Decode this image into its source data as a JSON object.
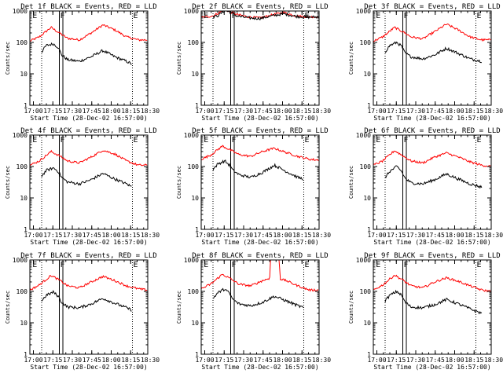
{
  "chart_data": [
    {
      "type": "line",
      "title": "Det 1f BLACK = Events, RED = LLD",
      "xlabel": "Start Time (28-Dec-02 16:57:00)",
      "ylabel": "Counts/sec",
      "yscale": "log",
      "ylim": [
        1,
        1000
      ],
      "yticks": [
        "1",
        "10",
        "100",
        "1000"
      ],
      "xlim": [
        0,
        100
      ],
      "xticks": [
        "17:00",
        "17:15",
        "17:30",
        "17:45",
        "18:00",
        "18:15",
        "18:30"
      ],
      "xtick_values": [
        3,
        19.5,
        36,
        52.5,
        69,
        85.5,
        102
      ],
      "markers": [
        {
          "label": "E",
          "x": 1.5
        },
        {
          "label": "F",
          "x": 25
        },
        {
          "label": "E",
          "x": 87
        }
      ],
      "dotted_lines": [
        10,
        25,
        87
      ],
      "solid_lines": [
        25,
        28
      ],
      "series": [
        {
          "name": "LLD",
          "color": "#ff0000",
          "x": [
            0,
            8,
            18,
            25,
            32,
            42,
            52,
            62,
            72,
            82,
            92,
            100
          ],
          "values": [
            110,
            150,
            300,
            200,
            135,
            120,
            200,
            360,
            250,
            150,
            120,
            120
          ]
        },
        {
          "name": "Events",
          "color": "#000000",
          "x": [
            10,
            14,
            20,
            24,
            27,
            32,
            42,
            52,
            62,
            72,
            82,
            87
          ],
          "values": [
            50,
            80,
            90,
            70,
            40,
            28,
            25,
            35,
            55,
            35,
            25,
            20
          ]
        }
      ]
    },
    {
      "type": "line",
      "title": "Det 2f BLACK = Events, RED = LLD",
      "xlabel": "Start Time (28-Dec-02 16:57:00)",
      "ylabel": "Counts/sec",
      "yscale": "log",
      "ylim": [
        1,
        1000
      ],
      "yticks": [
        "1",
        "10",
        "100",
        "1000"
      ],
      "xlim": [
        0,
        100
      ],
      "xticks": [
        "17:00",
        "17:15",
        "17:30",
        "17:45",
        "18:00",
        "18:15",
        "18:30"
      ],
      "xtick_values": [
        3,
        19.5,
        36,
        52.5,
        69,
        85.5,
        102
      ],
      "markers": [
        {
          "label": "E",
          "x": 1.5
        },
        {
          "label": "F",
          "x": 25
        },
        {
          "label": "E",
          "x": 87
        }
      ],
      "dotted_lines": [
        10,
        25,
        87
      ],
      "solid_lines": [
        25,
        28
      ],
      "series": [
        {
          "name": "LLD",
          "color": "#ff0000",
          "x": [
            0,
            10,
            20,
            30,
            40,
            50,
            60,
            70,
            80,
            90,
            100
          ],
          "values": [
            620,
            700,
            1100,
            780,
            650,
            600,
            750,
            900,
            700,
            650,
            650
          ]
        },
        {
          "name": "Events",
          "color": "#000000",
          "x": [
            10,
            14,
            20,
            25,
            30,
            40,
            50,
            60,
            70,
            80,
            90,
            100
          ],
          "values": [
            650,
            700,
            1050,
            900,
            700,
            600,
            580,
            700,
            820,
            680,
            640,
            640
          ]
        }
      ]
    },
    {
      "type": "line",
      "title": "Det 3f BLACK = Events, RED = LLD",
      "xlabel": "Start Time (28-Dec-02 16:57:00)",
      "ylabel": "Counts/sec",
      "yscale": "log",
      "ylim": [
        1,
        1000
      ],
      "yticks": [
        "1",
        "10",
        "100",
        "1000"
      ],
      "xlim": [
        0,
        100
      ],
      "xticks": [
        "17:00",
        "17:15",
        "17:30",
        "17:45",
        "18:00",
        "18:15",
        "18:30"
      ],
      "xtick_values": [
        3,
        19.5,
        36,
        52.5,
        69,
        85.5,
        102
      ],
      "markers": [
        {
          "label": "E",
          "x": 1.5
        },
        {
          "label": "F",
          "x": 25
        },
        {
          "label": "E",
          "x": 87
        }
      ],
      "dotted_lines": [
        10,
        25,
        87
      ],
      "solid_lines": [
        25,
        28
      ],
      "series": [
        {
          "name": "LLD",
          "color": "#ff0000",
          "x": [
            0,
            8,
            18,
            25,
            32,
            42,
            52,
            62,
            72,
            82,
            92,
            100
          ],
          "values": [
            110,
            150,
            300,
            220,
            150,
            130,
            220,
            380,
            250,
            150,
            120,
            120
          ]
        },
        {
          "name": "Events",
          "color": "#000000",
          "x": [
            10,
            14,
            20,
            24,
            27,
            32,
            42,
            52,
            62,
            72,
            82,
            92
          ],
          "values": [
            50,
            80,
            100,
            75,
            45,
            35,
            30,
            40,
            65,
            45,
            30,
            25
          ]
        }
      ]
    },
    {
      "type": "line",
      "title": "Det 4f BLACK = Events, RED = LLD",
      "xlabel": "Start Time (28-Dec-02 16:57:00)",
      "ylabel": "Counts/sec",
      "yscale": "log",
      "ylim": [
        1,
        1000
      ],
      "yticks": [
        "1",
        "10",
        "100",
        "1000"
      ],
      "xlim": [
        0,
        100
      ],
      "xticks": [
        "17:00",
        "17:15",
        "17:30",
        "17:45",
        "18:00",
        "18:15",
        "18:30"
      ],
      "xtick_values": [
        3,
        19.5,
        36,
        52.5,
        69,
        85.5,
        102
      ],
      "markers": [
        {
          "label": "E",
          "x": 1.5
        },
        {
          "label": "F",
          "x": 25
        },
        {
          "label": "E",
          "x": 87
        }
      ],
      "dotted_lines": [
        10,
        25,
        87
      ],
      "solid_lines": [
        25,
        28
      ],
      "series": [
        {
          "name": "LLD",
          "color": "#ff0000",
          "x": [
            0,
            8,
            18,
            25,
            32,
            42,
            52,
            62,
            72,
            82,
            92,
            100
          ],
          "values": [
            110,
            150,
            300,
            220,
            150,
            130,
            200,
            330,
            250,
            150,
            110,
            110
          ]
        },
        {
          "name": "Events",
          "color": "#000000",
          "x": [
            10,
            14,
            20,
            24,
            27,
            32,
            42,
            52,
            62,
            72,
            82,
            87
          ],
          "values": [
            50,
            75,
            90,
            70,
            45,
            32,
            28,
            38,
            60,
            40,
            28,
            22
          ]
        }
      ]
    },
    {
      "type": "line",
      "title": "Det 5f BLACK = Events, RED = LLD",
      "xlabel": "Start Time (28-Dec-02 16:57:00)",
      "ylabel": "Counts/sec",
      "yscale": "log",
      "ylim": [
        1,
        1000
      ],
      "yticks": [
        "1",
        "10",
        "100",
        "1000"
      ],
      "xlim": [
        0,
        100
      ],
      "xticks": [
        "17:00",
        "17:15",
        "17:30",
        "17:45",
        "18:00",
        "18:15",
        "18:30"
      ],
      "xtick_values": [
        3,
        19.5,
        36,
        52.5,
        69,
        85.5,
        102
      ],
      "markers": [
        {
          "label": "E",
          "x": 1.5
        },
        {
          "label": "F",
          "x": 25
        },
        {
          "label": "E",
          "x": 87
        }
      ],
      "dotted_lines": [
        10,
        25,
        87
      ],
      "solid_lines": [
        25,
        28
      ],
      "series": [
        {
          "name": "LLD",
          "color": "#ff0000",
          "x": [
            0,
            8,
            18,
            25,
            32,
            42,
            52,
            62,
            72,
            82,
            92,
            100
          ],
          "values": [
            170,
            230,
            450,
            330,
            240,
            210,
            300,
            380,
            280,
            210,
            170,
            160
          ]
        },
        {
          "name": "Events",
          "color": "#000000",
          "x": [
            10,
            14,
            20,
            24,
            27,
            32,
            42,
            52,
            62,
            72,
            82,
            87
          ],
          "values": [
            80,
            120,
            150,
            110,
            75,
            55,
            45,
            65,
            110,
            70,
            45,
            40
          ]
        }
      ]
    },
    {
      "type": "line",
      "title": "Det 6f BLACK = Events, RED = LLD",
      "xlabel": "Start Time (28-Dec-02 16:57:00)",
      "ylabel": "Counts/sec",
      "yscale": "log",
      "ylim": [
        1,
        1000
      ],
      "yticks": [
        "1",
        "10",
        "100",
        "1000"
      ],
      "xlim": [
        0,
        100
      ],
      "xticks": [
        "17:00",
        "17:15",
        "17:30",
        "17:45",
        "18:00",
        "18:15",
        "18:30"
      ],
      "xtick_values": [
        3,
        19.5,
        36,
        52.5,
        69,
        85.5,
        102
      ],
      "markers": [
        {
          "label": "E",
          "x": 1.5
        },
        {
          "label": "F",
          "x": 25
        },
        {
          "label": "E",
          "x": 87
        }
      ],
      "dotted_lines": [
        10,
        25,
        87
      ],
      "solid_lines": [
        25,
        28
      ],
      "series": [
        {
          "name": "LLD",
          "color": "#ff0000",
          "x": [
            0,
            8,
            18,
            25,
            32,
            42,
            52,
            62,
            72,
            82,
            92,
            100
          ],
          "values": [
            110,
            150,
            320,
            220,
            150,
            130,
            200,
            270,
            200,
            140,
            110,
            100
          ]
        },
        {
          "name": "Events",
          "color": "#000000",
          "x": [
            10,
            14,
            20,
            24,
            27,
            32,
            42,
            52,
            62,
            72,
            82,
            92
          ],
          "values": [
            45,
            70,
            100,
            70,
            42,
            30,
            28,
            38,
            58,
            40,
            28,
            22
          ]
        }
      ]
    },
    {
      "type": "line",
      "title": "Det 7f BLACK = Events, RED = LLD",
      "xlabel": "Start Time (28-Dec-02 16:57:00)",
      "ylabel": "Counts/sec",
      "yscale": "log",
      "ylim": [
        1,
        1000
      ],
      "yticks": [
        "1",
        "10",
        "100",
        "1000"
      ],
      "xlim": [
        0,
        100
      ],
      "xticks": [
        "17:00",
        "17:15",
        "17:30",
        "17:45",
        "18:00",
        "18:15",
        "18:30"
      ],
      "xtick_values": [
        3,
        19.5,
        36,
        52.5,
        69,
        85.5,
        102
      ],
      "markers": [
        {
          "label": "E",
          "x": 1.5
        },
        {
          "label": "F",
          "x": 25
        },
        {
          "label": "E",
          "x": 87
        }
      ],
      "dotted_lines": [
        10,
        25,
        87
      ],
      "solid_lines": [
        25,
        28
      ],
      "series": [
        {
          "name": "LLD",
          "color": "#ff0000",
          "x": [
            0,
            8,
            18,
            25,
            32,
            42,
            52,
            62,
            72,
            82,
            92,
            100
          ],
          "values": [
            110,
            160,
            320,
            230,
            150,
            130,
            200,
            300,
            220,
            150,
            120,
            110
          ]
        },
        {
          "name": "Events",
          "color": "#000000",
          "x": [
            10,
            14,
            20,
            24,
            27,
            32,
            42,
            52,
            62,
            72,
            82,
            87
          ],
          "values": [
            50,
            75,
            95,
            70,
            45,
            32,
            30,
            40,
            60,
            42,
            30,
            25
          ]
        }
      ]
    },
    {
      "type": "line",
      "title": "Det 8f BLACK = Events, RED = LLD",
      "xlabel": "Start Time (28-Dec-02 16:57:00)",
      "ylabel": "Counts/sec",
      "yscale": "log",
      "ylim": [
        1,
        1000
      ],
      "yticks": [
        "1",
        "10",
        "100",
        "1000"
      ],
      "xlim": [
        0,
        100
      ],
      "xticks": [
        "17:00",
        "17:15",
        "17:30",
        "17:45",
        "18:00",
        "18:15",
        "18:30"
      ],
      "xtick_values": [
        3,
        19.5,
        36,
        52.5,
        69,
        85.5,
        102
      ],
      "markers": [
        {
          "label": "E",
          "x": 1.5
        },
        {
          "label": "F",
          "x": 25
        },
        {
          "label": "E",
          "x": 87
        }
      ],
      "dotted_lines": [
        10,
        25,
        87
      ],
      "solid_lines": [
        25,
        28
      ],
      "series": [
        {
          "name": "LLD",
          "color": "#ff0000",
          "x": [
            0,
            8,
            18,
            25,
            32,
            42,
            52,
            58,
            59,
            66,
            67,
            72,
            82,
            92,
            100
          ],
          "values": [
            120,
            170,
            350,
            250,
            170,
            150,
            220,
            260,
            1300,
            1300,
            250,
            220,
            150,
            110,
            110
          ]
        },
        {
          "name": "Events",
          "color": "#000000",
          "x": [
            10,
            14,
            20,
            24,
            27,
            32,
            42,
            52,
            62,
            72,
            82,
            87
          ],
          "values": [
            60,
            90,
            120,
            85,
            55,
            40,
            35,
            45,
            70,
            50,
            35,
            30
          ]
        }
      ]
    },
    {
      "type": "line",
      "title": "Det 9f BLACK = Events, RED = LLD",
      "xlabel": "Start Time (28-Dec-02 16:57:00)",
      "ylabel": "Counts/sec",
      "yscale": "log",
      "ylim": [
        1,
        1000
      ],
      "yticks": [
        "1",
        "10",
        "100",
        "1000"
      ],
      "xlim": [
        0,
        100
      ],
      "xticks": [
        "17:00",
        "17:15",
        "17:30",
        "17:45",
        "18:00",
        "18:15",
        "18:30"
      ],
      "xtick_values": [
        3,
        19.5,
        36,
        52.5,
        69,
        85.5,
        102
      ],
      "markers": [
        {
          "label": "E",
          "x": 1.5
        },
        {
          "label": "F",
          "x": 25
        },
        {
          "label": "E",
          "x": 87
        }
      ],
      "dotted_lines": [
        10,
        25,
        87
      ],
      "solid_lines": [
        25,
        28
      ],
      "series": [
        {
          "name": "LLD",
          "color": "#ff0000",
          "x": [
            0,
            8,
            18,
            25,
            32,
            42,
            52,
            62,
            72,
            82,
            92,
            100
          ],
          "values": [
            110,
            160,
            330,
            230,
            150,
            130,
            200,
            270,
            210,
            150,
            110,
            100
          ]
        },
        {
          "name": "Events",
          "color": "#000000",
          "x": [
            10,
            14,
            20,
            24,
            27,
            32,
            42,
            52,
            62,
            72,
            82,
            92
          ],
          "values": [
            50,
            75,
            100,
            75,
            45,
            32,
            30,
            38,
            55,
            40,
            28,
            20
          ]
        }
      ]
    }
  ]
}
